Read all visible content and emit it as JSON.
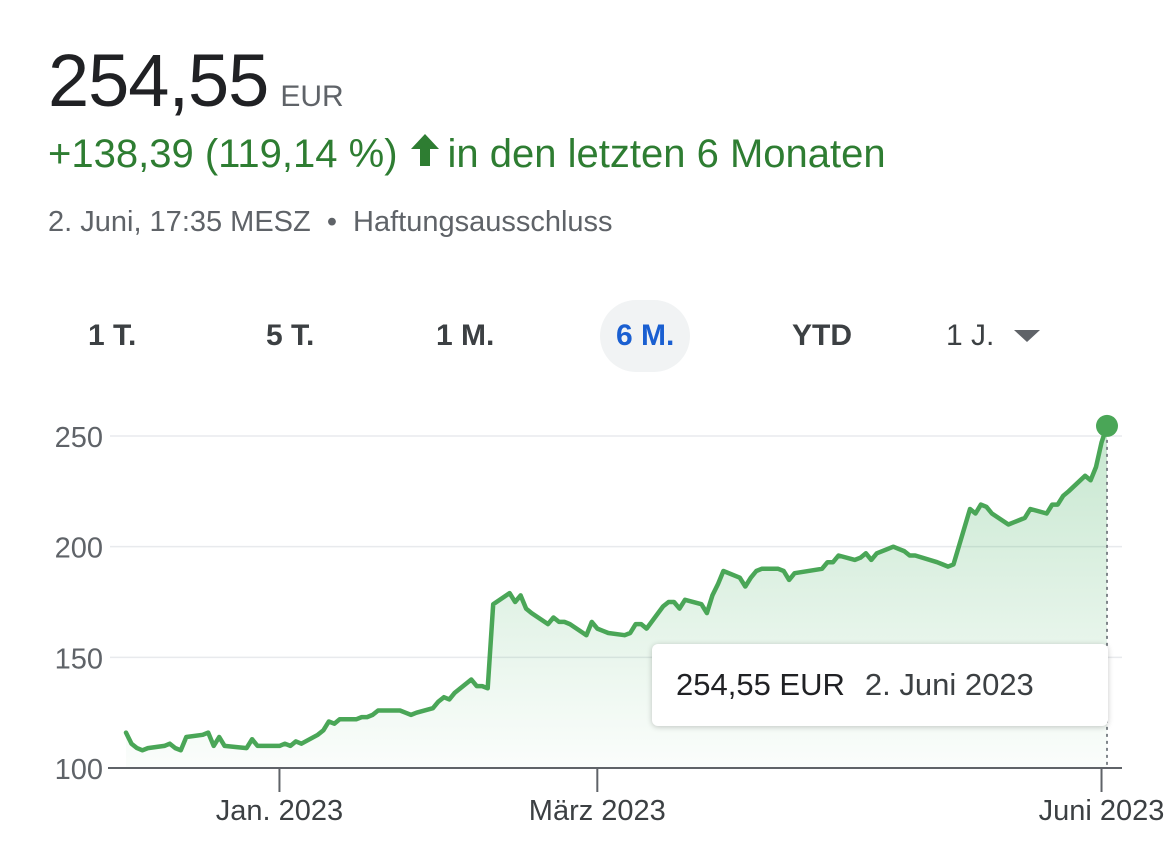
{
  "quote": {
    "price": "254,55",
    "currency": "EUR",
    "change": "+138,39 (119,14 %)",
    "change_period": "in den letzten 6 Monaten",
    "timestamp": "2. Juni, 17:35 MESZ",
    "disclaimer": "Haftungsausschluss",
    "up_color": "#2e7d32"
  },
  "ranges": [
    {
      "label": "1 T.",
      "selected": false
    },
    {
      "label": "5 T.",
      "selected": false
    },
    {
      "label": "1 M.",
      "selected": false
    },
    {
      "label": "6 M.",
      "selected": true
    },
    {
      "label": "YTD",
      "selected": false
    },
    {
      "label": "1 J.",
      "selected": false
    }
  ],
  "tooltip": {
    "value": "254,55 EUR",
    "date": "2. Juni 2023"
  },
  "chart_data": {
    "type": "area",
    "series": [
      {
        "name": "",
        "color": "#34a853"
      }
    ],
    "y_ticks": [
      100,
      150,
      200,
      250
    ],
    "y_tick_labels": [
      "100",
      "150",
      "200",
      "250"
    ],
    "ylim": [
      100,
      258
    ],
    "x_ticks": [
      {
        "label": "Jan. 2023",
        "date": "2023-01-02"
      },
      {
        "label": "März 2023",
        "date": "2023-03-01"
      },
      {
        "label": "Juni 2023",
        "date": "2023-06-01"
      }
    ],
    "xlim": [
      "2022-12-05",
      "2023-06-02"
    ],
    "grid": true,
    "points": [
      [
        "2022-12-05",
        116
      ],
      [
        "2022-12-06",
        111
      ],
      [
        "2022-12-07",
        109
      ],
      [
        "2022-12-08",
        108
      ],
      [
        "2022-12-09",
        109
      ],
      [
        "2022-12-12",
        110
      ],
      [
        "2022-12-13",
        111
      ],
      [
        "2022-12-14",
        109
      ],
      [
        "2022-12-15",
        108
      ],
      [
        "2022-12-16",
        114
      ],
      [
        "2022-12-19",
        115
      ],
      [
        "2022-12-20",
        116
      ],
      [
        "2022-12-21",
        110
      ],
      [
        "2022-12-22",
        114
      ],
      [
        "2022-12-23",
        110
      ],
      [
        "2022-12-27",
        109
      ],
      [
        "2022-12-28",
        113
      ],
      [
        "2022-12-29",
        110
      ],
      [
        "2022-12-30",
        110
      ],
      [
        "2023-01-02",
        110
      ],
      [
        "2023-01-03",
        111
      ],
      [
        "2023-01-04",
        110
      ],
      [
        "2023-01-05",
        112
      ],
      [
        "2023-01-06",
        111
      ],
      [
        "2023-01-09",
        115
      ],
      [
        "2023-01-10",
        117
      ],
      [
        "2023-01-11",
        121
      ],
      [
        "2023-01-12",
        120
      ],
      [
        "2023-01-13",
        122
      ],
      [
        "2023-01-16",
        122
      ],
      [
        "2023-01-17",
        123
      ],
      [
        "2023-01-18",
        123
      ],
      [
        "2023-01-19",
        124
      ],
      [
        "2023-01-20",
        126
      ],
      [
        "2023-01-23",
        126
      ],
      [
        "2023-01-24",
        126
      ],
      [
        "2023-01-25",
        125
      ],
      [
        "2023-01-26",
        124
      ],
      [
        "2023-01-27",
        125
      ],
      [
        "2023-01-30",
        127
      ],
      [
        "2023-01-31",
        130
      ],
      [
        "2023-02-01",
        132
      ],
      [
        "2023-02-02",
        131
      ],
      [
        "2023-02-03",
        134
      ],
      [
        "2023-02-06",
        140
      ],
      [
        "2023-02-07",
        137
      ],
      [
        "2023-02-08",
        137
      ],
      [
        "2023-02-09",
        136
      ],
      [
        "2023-02-10",
        174
      ],
      [
        "2023-02-13",
        179
      ],
      [
        "2023-02-14",
        175
      ],
      [
        "2023-02-15",
        178
      ],
      [
        "2023-02-16",
        172
      ],
      [
        "2023-02-17",
        170
      ],
      [
        "2023-02-20",
        165
      ],
      [
        "2023-02-21",
        168
      ],
      [
        "2023-02-22",
        166
      ],
      [
        "2023-02-23",
        166
      ],
      [
        "2023-02-24",
        165
      ],
      [
        "2023-02-27",
        160
      ],
      [
        "2023-02-28",
        166
      ],
      [
        "2023-03-01",
        163
      ],
      [
        "2023-03-02",
        162
      ],
      [
        "2023-03-03",
        161
      ],
      [
        "2023-03-06",
        160
      ],
      [
        "2023-03-07",
        161
      ],
      [
        "2023-03-08",
        165
      ],
      [
        "2023-03-09",
        165
      ],
      [
        "2023-03-10",
        163
      ],
      [
        "2023-03-13",
        173
      ],
      [
        "2023-03-14",
        175
      ],
      [
        "2023-03-15",
        175
      ],
      [
        "2023-03-16",
        172
      ],
      [
        "2023-03-17",
        176
      ],
      [
        "2023-03-20",
        174
      ],
      [
        "2023-03-21",
        170
      ],
      [
        "2023-03-22",
        178
      ],
      [
        "2023-03-23",
        183
      ],
      [
        "2023-03-24",
        189
      ],
      [
        "2023-03-27",
        186
      ],
      [
        "2023-03-28",
        182
      ],
      [
        "2023-03-29",
        186
      ],
      [
        "2023-03-30",
        189
      ],
      [
        "2023-03-31",
        190
      ],
      [
        "2023-04-03",
        190
      ],
      [
        "2023-04-04",
        189
      ],
      [
        "2023-04-05",
        185
      ],
      [
        "2023-04-06",
        188
      ],
      [
        "2023-04-11",
        190
      ],
      [
        "2023-04-12",
        193
      ],
      [
        "2023-04-13",
        193
      ],
      [
        "2023-04-14",
        196
      ],
      [
        "2023-04-17",
        194
      ],
      [
        "2023-04-18",
        195
      ],
      [
        "2023-04-19",
        197
      ],
      [
        "2023-04-20",
        194
      ],
      [
        "2023-04-21",
        197
      ],
      [
        "2023-04-24",
        200
      ],
      [
        "2023-04-25",
        199
      ],
      [
        "2023-04-26",
        198
      ],
      [
        "2023-04-27",
        196
      ],
      [
        "2023-04-28",
        196
      ],
      [
        "2023-05-02",
        193
      ],
      [
        "2023-05-03",
        192
      ],
      [
        "2023-05-04",
        191
      ],
      [
        "2023-05-05",
        192
      ],
      [
        "2023-05-08",
        217
      ],
      [
        "2023-05-09",
        215
      ],
      [
        "2023-05-10",
        219
      ],
      [
        "2023-05-11",
        218
      ],
      [
        "2023-05-12",
        215
      ],
      [
        "2023-05-15",
        210
      ],
      [
        "2023-05-16",
        211
      ],
      [
        "2023-05-17",
        212
      ],
      [
        "2023-05-18",
        213
      ],
      [
        "2023-05-19",
        217
      ],
      [
        "2023-05-22",
        215
      ],
      [
        "2023-05-23",
        219
      ],
      [
        "2023-05-24",
        219
      ],
      [
        "2023-05-25",
        223
      ],
      [
        "2023-05-26",
        225
      ],
      [
        "2023-05-29",
        232
      ],
      [
        "2023-05-30",
        230
      ],
      [
        "2023-05-31",
        236
      ],
      [
        "2023-06-01",
        247
      ],
      [
        "2023-06-02",
        254.55
      ]
    ]
  }
}
